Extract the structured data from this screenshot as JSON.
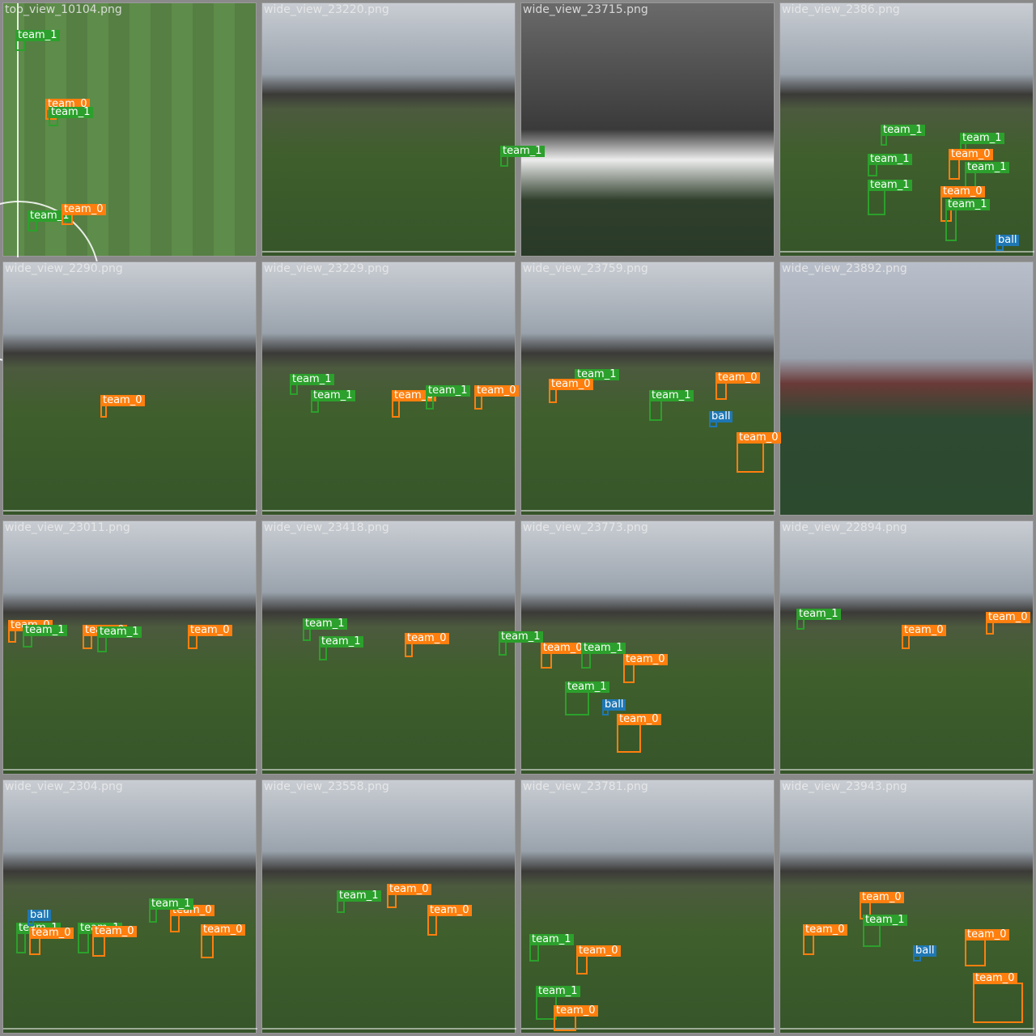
{
  "colors": {
    "team_0": "#ff7f0e",
    "team_1": "#2ca02c",
    "ball": "#1f77b4"
  },
  "labels": {
    "team_0": "team_0",
    "team_1": "team_1",
    "ball": "ball"
  },
  "tiles": [
    {
      "file": "top_view_10104.png",
      "kind": "top",
      "dets": [
        [
          "team_1",
          15,
          45,
          12,
          14
        ],
        [
          "team_0",
          52,
          130,
          14,
          14
        ],
        [
          "team_1",
          56,
          140,
          12,
          12
        ],
        [
          "team_1",
          30,
          268,
          12,
          14
        ],
        [
          "team_0",
          72,
          260,
          14,
          14
        ]
      ]
    },
    {
      "file": "wide_view_23220.png",
      "kind": "wide",
      "dets": [
        [
          "team_1",
          294,
          188,
          10,
          14
        ]
      ]
    },
    {
      "file": "wide_view_23715.png",
      "kind": "blur",
      "dets": []
    },
    {
      "file": "wide_view_2386.png",
      "kind": "wide",
      "dets": [
        [
          "team_1",
          124,
          162,
          8,
          14
        ],
        [
          "team_1",
          108,
          198,
          12,
          16
        ],
        [
          "team_1",
          108,
          230,
          22,
          32
        ],
        [
          "team_1",
          222,
          172,
          8,
          12
        ],
        [
          "team_0",
          208,
          192,
          14,
          26
        ],
        [
          "team_1",
          228,
          208,
          14,
          20
        ],
        [
          "team_0",
          198,
          238,
          14,
          32
        ],
        [
          "team_1",
          204,
          254,
          14,
          40
        ],
        [
          "ball",
          266,
          298,
          10,
          8
        ]
      ]
    },
    {
      "file": "wide_view_2290.png",
      "kind": "wide",
      "dets": [
        [
          "team_0",
          120,
          176,
          8,
          16
        ]
      ]
    },
    {
      "file": "wide_view_23229.png",
      "kind": "wide",
      "dets": [
        [
          "team_1",
          34,
          150,
          10,
          14
        ],
        [
          "team_1",
          60,
          170,
          10,
          16
        ],
        [
          "team_0",
          160,
          170,
          10,
          22
        ],
        [
          "team_1",
          202,
          164,
          10,
          18
        ],
        [
          "team_0",
          262,
          164,
          10,
          18
        ]
      ]
    },
    {
      "file": "wide_view_23759.png",
      "kind": "wide",
      "dets": [
        [
          "team_1",
          66,
          144,
          10,
          14
        ],
        [
          "team_0",
          34,
          156,
          10,
          18
        ],
        [
          "team_1",
          158,
          170,
          16,
          26
        ],
        [
          "team_0",
          240,
          148,
          14,
          22
        ],
        [
          "ball",
          232,
          196,
          10,
          8
        ],
        [
          "team_0",
          266,
          222,
          34,
          38
        ]
      ]
    },
    {
      "file": "wide_view_23892.png",
      "kind": "blur2",
      "dets": []
    },
    {
      "file": "wide_view_23011.png",
      "kind": "wide",
      "dets": [
        [
          "team_0",
          6,
          134,
          10,
          16
        ],
        [
          "team_1",
          24,
          140,
          12,
          16
        ],
        [
          "team_0",
          98,
          140,
          12,
          18
        ],
        [
          "team_1",
          116,
          142,
          12,
          20
        ],
        [
          "team_0",
          228,
          140,
          12,
          18
        ]
      ]
    },
    {
      "file": "wide_view_23418.png",
      "kind": "wide",
      "dets": [
        [
          "team_1",
          50,
          132,
          10,
          16
        ],
        [
          "team_1",
          70,
          154,
          10,
          18
        ],
        [
          "team_0",
          176,
          150,
          10,
          18
        ],
        [
          "team_1",
          292,
          148,
          10,
          18
        ]
      ]
    },
    {
      "file": "wide_view_23773.png",
      "kind": "wide",
      "dets": [
        [
          "team_0",
          24,
          162,
          14,
          20
        ],
        [
          "team_1",
          74,
          162,
          12,
          20
        ],
        [
          "team_0",
          126,
          176,
          14,
          24
        ],
        [
          "team_1",
          54,
          210,
          30,
          30
        ],
        [
          "ball",
          100,
          232,
          8,
          8
        ],
        [
          "team_0",
          118,
          250,
          30,
          36
        ]
      ]
    },
    {
      "file": "wide_view_22894.png",
      "kind": "wide",
      "dets": [
        [
          "team_1",
          20,
          120,
          10,
          14
        ],
        [
          "team_0",
          150,
          140,
          10,
          18
        ],
        [
          "team_0",
          254,
          124,
          10,
          16
        ]
      ]
    },
    {
      "file": "wide_view_2304.png",
      "kind": "wide",
      "dets": [
        [
          "team_1",
          16,
          188,
          12,
          26
        ],
        [
          "team_0",
          32,
          194,
          14,
          22
        ],
        [
          "team_1",
          92,
          188,
          14,
          26
        ],
        [
          "team_0",
          110,
          192,
          16,
          26
        ],
        [
          "team_0",
          206,
          166,
          12,
          22
        ],
        [
          "team_0",
          244,
          190,
          16,
          30
        ],
        [
          "team_1",
          180,
          158,
          10,
          18
        ],
        [
          "ball",
          30,
          172,
          8,
          8
        ]
      ]
    },
    {
      "file": "wide_view_23558.png",
      "kind": "wide",
      "dets": [
        [
          "team_1",
          92,
          148,
          10,
          16
        ],
        [
          "team_0",
          154,
          140,
          12,
          18
        ],
        [
          "team_0",
          204,
          166,
          12,
          26
        ]
      ]
    },
    {
      "file": "wide_view_23781.png",
      "kind": "wide",
      "dets": [
        [
          "team_1",
          10,
          202,
          12,
          22
        ],
        [
          "team_0",
          68,
          216,
          14,
          24
        ],
        [
          "team_1",
          18,
          266,
          26,
          30
        ],
        [
          "team_0",
          40,
          290,
          28,
          20
        ]
      ]
    },
    {
      "file": "wide_view_23943.png",
      "kind": "wide",
      "dets": [
        [
          "team_0",
          98,
          150,
          14,
          22
        ],
        [
          "team_1",
          102,
          178,
          22,
          28
        ],
        [
          "team_0",
          28,
          190,
          14,
          26
        ],
        [
          "ball",
          164,
          216,
          10,
          8
        ],
        [
          "team_0",
          228,
          196,
          26,
          34
        ],
        [
          "team_0",
          238,
          250,
          62,
          50
        ]
      ]
    }
  ]
}
